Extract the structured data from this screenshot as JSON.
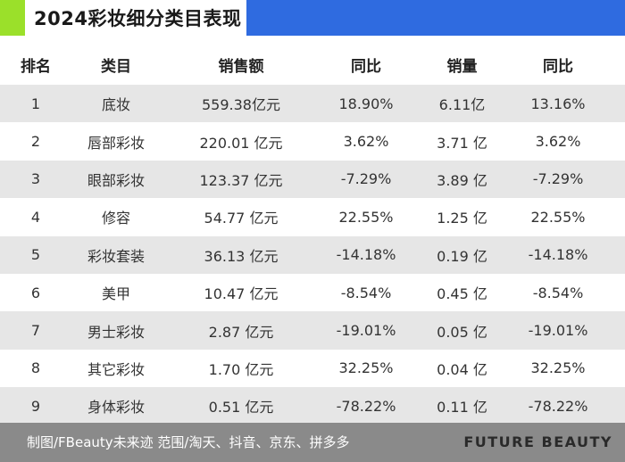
{
  "title": "2024彩妆细分类目表现",
  "colors": {
    "accent_green": "#9BE02A",
    "accent_blue": "#2F6BE0",
    "row_shade": "#E6E6E6",
    "footer_bg": "#8A8A8A"
  },
  "table": {
    "headers": [
      "排名",
      "类目",
      "销售额",
      "同比",
      "销量",
      "同比"
    ],
    "rows": [
      [
        "1",
        "底妆",
        "559.38亿元",
        "18.90%",
        "6.11亿",
        "13.16%"
      ],
      [
        "2",
        "唇部彩妆",
        "220.01 亿元",
        "3.62%",
        "3.71 亿",
        "3.62%"
      ],
      [
        "3",
        "眼部彩妆",
        "123.37 亿元",
        "-7.29%",
        "3.89 亿",
        "-7.29%"
      ],
      [
        "4",
        "修容",
        "54.77 亿元",
        "22.55%",
        "1.25 亿",
        "22.55%"
      ],
      [
        "5",
        "彩妆套装",
        "36.13 亿元",
        "-14.18%",
        "0.19 亿",
        "-14.18%"
      ],
      [
        "6",
        "美甲",
        "10.47 亿元",
        "-8.54%",
        "0.45 亿",
        "-8.54%"
      ],
      [
        "7",
        "男士彩妆",
        "2.87 亿元",
        "-19.01%",
        "0.05 亿",
        "-19.01%"
      ],
      [
        "8",
        "其它彩妆",
        "1.70 亿元",
        "32.25%",
        "0.04 亿",
        "32.25%"
      ],
      [
        "9",
        "身体彩妆",
        "0.51 亿元",
        "-78.22%",
        "0.11 亿",
        "-78.22%"
      ]
    ]
  },
  "footer": {
    "source": "制图/FBeauty未来迹   范围/淘天、抖音、京东、拼多多",
    "brand": "FUTURE BEAUTY"
  }
}
